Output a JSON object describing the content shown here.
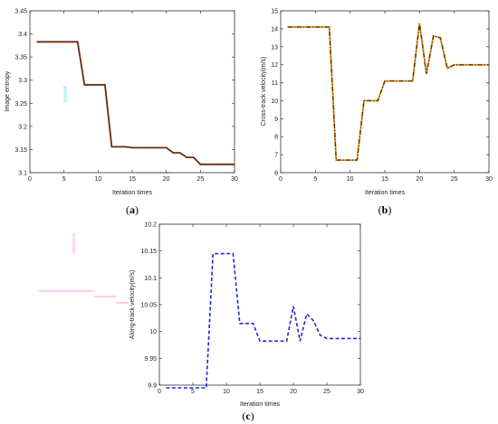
{
  "chart_data": [
    {
      "id": "a",
      "panel_label_open": "(",
      "panel_label_letter": "a",
      "panel_label_close": ")",
      "type": "line",
      "xlabel": "Iteration times",
      "ylabel": "Image entropy",
      "xlim": [
        0,
        30
      ],
      "ylim": [
        3.1,
        3.45
      ],
      "xticks": [
        0,
        5,
        10,
        15,
        20,
        25,
        30
      ],
      "yticks": [
        3.1,
        3.15,
        3.2,
        3.25,
        3.3,
        3.35,
        3.4,
        3.45
      ],
      "ytick_labels": [
        "3.1",
        "3.15",
        "3.2",
        "3.25",
        "3.3",
        "3.35",
        "3.4",
        "3.45"
      ],
      "grid": false,
      "series": [
        {
          "color": "#6b2a0c",
          "style": "solid",
          "x": [
            1,
            7,
            8,
            11,
            12,
            14,
            15,
            20,
            21,
            22,
            23,
            24,
            25,
            30
          ],
          "y": [
            3.383,
            3.383,
            3.29,
            3.29,
            3.156,
            3.156,
            3.154,
            3.154,
            3.143,
            3.143,
            3.133,
            3.133,
            3.118,
            3.118
          ]
        }
      ]
    },
    {
      "id": "b",
      "panel_label_open": "(",
      "panel_label_letter": "b",
      "panel_label_close": ")",
      "type": "line",
      "xlabel": "Iteration times",
      "ylabel": "Cross-track velocity(m/s)",
      "xlim": [
        0,
        30
      ],
      "ylim": [
        6,
        15
      ],
      "xticks": [
        0,
        5,
        10,
        15,
        20,
        25,
        30
      ],
      "yticks": [
        6,
        7,
        8,
        9,
        10,
        11,
        12,
        13,
        14,
        15
      ],
      "ytick_labels": [
        "6",
        "7",
        "8",
        "9",
        "10",
        "11",
        "12",
        "13",
        "14",
        "15"
      ],
      "grid": false,
      "series": [
        {
          "color": "#6b2a0c",
          "accent": "#d9a017",
          "style": "dash-dot",
          "x": [
            1,
            7,
            8,
            11,
            12,
            14,
            15,
            19,
            20,
            21,
            22,
            23,
            24,
            25,
            30
          ],
          "y": [
            14.1,
            14.1,
            6.7,
            6.7,
            10.0,
            10.0,
            11.1,
            11.1,
            14.3,
            11.5,
            13.6,
            13.5,
            11.8,
            12.0,
            12.0
          ]
        }
      ]
    },
    {
      "id": "c",
      "panel_label_open": "(",
      "panel_label_letter": "c",
      "panel_label_close": ")",
      "type": "line",
      "xlabel": "Iteration times",
      "ylabel": "Along-track velocity(m/s)",
      "xlim": [
        0,
        30
      ],
      "ylim": [
        9.9,
        10.2
      ],
      "xticks": [
        0,
        5,
        10,
        15,
        20,
        25,
        30
      ],
      "yticks": [
        9.9,
        9.95,
        10,
        10.05,
        10.1,
        10.15,
        10.2
      ],
      "ytick_labels": [
        "9.9",
        "9.95",
        "10",
        "10.05",
        "10.1",
        "10.15",
        "10.2"
      ],
      "grid": false,
      "series": [
        {
          "color": "#1f2bd6",
          "style": "dashed",
          "x": [
            1,
            7,
            8,
            11,
            12,
            14,
            15,
            19,
            20,
            21,
            22,
            23,
            24,
            25,
            30
          ],
          "y": [
            9.895,
            9.895,
            10.145,
            10.145,
            10.015,
            10.015,
            9.982,
            9.982,
            10.047,
            9.982,
            10.033,
            10.02,
            9.993,
            9.987,
            9.987
          ]
        }
      ]
    }
  ]
}
